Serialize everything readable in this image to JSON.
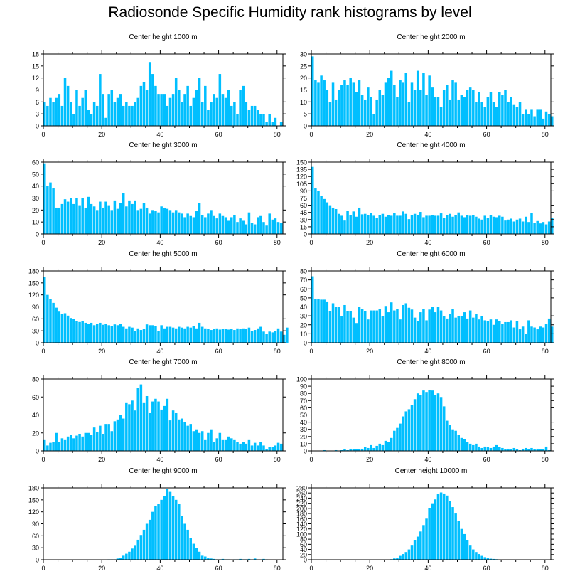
{
  "title": "Radiosonde Specific Humidity rank histograms by level",
  "colors": {
    "bar": "#00bfff",
    "axis": "#000000"
  },
  "chart_data": [
    {
      "type": "bar",
      "title": "Center height 1000 m",
      "xlabel": "",
      "ylabel": "",
      "xlim": [
        0,
        82
      ],
      "ylim": [
        0,
        18
      ],
      "yticks": [
        0,
        3,
        6,
        9,
        12,
        15,
        18
      ],
      "xticks": [
        0,
        20,
        40,
        60,
        80
      ],
      "values": [
        6,
        5,
        7,
        6,
        7,
        8,
        5,
        12,
        10,
        6,
        3,
        9,
        5,
        7,
        9,
        4,
        3,
        6,
        5,
        13,
        8,
        2,
        8,
        9,
        6,
        7,
        8,
        5,
        6,
        5,
        5,
        6,
        7,
        10,
        11,
        9,
        16,
        13,
        10,
        8,
        8,
        8,
        5,
        7,
        8,
        12,
        9,
        6,
        8,
        10,
        5,
        7,
        9,
        12,
        6,
        10,
        4,
        6,
        8,
        7,
        13,
        8,
        7,
        9,
        5,
        6,
        3,
        9,
        10,
        6,
        4,
        5,
        5,
        4,
        3,
        3,
        1,
        3,
        1,
        2,
        0,
        1
      ]
    },
    {
      "type": "bar",
      "title": "Center height 2000 m",
      "xlabel": "",
      "ylabel": "",
      "xlim": [
        0,
        82
      ],
      "ylim": [
        0,
        30
      ],
      "yticks": [
        0,
        5,
        10,
        15,
        20,
        25,
        30
      ],
      "xticks": [
        0,
        20,
        40,
        60,
        80
      ],
      "values": [
        29,
        19,
        18,
        21,
        19,
        15,
        10,
        18,
        11,
        15,
        17,
        19,
        17,
        20,
        18,
        14,
        19,
        13,
        11,
        16,
        12,
        5,
        11,
        15,
        13,
        18,
        20,
        23,
        17,
        12,
        19,
        18,
        22,
        10,
        18,
        15,
        23,
        15,
        22,
        13,
        21,
        16,
        12,
        12,
        8,
        15,
        17,
        11,
        19,
        18,
        11,
        13,
        12,
        15,
        16,
        15,
        10,
        14,
        10,
        8,
        12,
        14,
        10,
        8,
        14,
        13,
        15,
        10,
        12,
        9,
        8,
        10,
        5,
        7,
        5,
        7,
        4,
        7,
        7,
        3,
        6,
        5,
        4
      ]
    },
    {
      "type": "bar",
      "title": "Center height 3000 m",
      "xlabel": "",
      "ylabel": "",
      "xlim": [
        0,
        82
      ],
      "ylim": [
        0,
        60
      ],
      "yticks": [
        0,
        10,
        20,
        30,
        40,
        50,
        60
      ],
      "xticks": [
        0,
        20,
        40,
        60,
        80
      ],
      "values": [
        59,
        40,
        43,
        38,
        22,
        22,
        25,
        29,
        27,
        30,
        25,
        30,
        24,
        30,
        22,
        31,
        25,
        23,
        20,
        27,
        22,
        27,
        24,
        20,
        28,
        21,
        26,
        34,
        23,
        28,
        25,
        28,
        20,
        21,
        26,
        22,
        17,
        20,
        19,
        18,
        23,
        22,
        21,
        20,
        18,
        20,
        18,
        17,
        14,
        17,
        15,
        14,
        19,
        26,
        16,
        14,
        17,
        20,
        15,
        13,
        17,
        15,
        14,
        11,
        14,
        16,
        10,
        13,
        11,
        8,
        18,
        9,
        8,
        14,
        15,
        10,
        7,
        17,
        12,
        13,
        10,
        9
      ]
    },
    {
      "type": "bar",
      "title": "Center height 4000 m",
      "xlabel": "",
      "ylabel": "",
      "xlim": [
        0,
        82
      ],
      "ylim": [
        0,
        150
      ],
      "yticks": [
        0,
        15,
        30,
        45,
        60,
        75,
        90,
        105,
        120,
        135,
        150
      ],
      "xticks": [
        0,
        20,
        40,
        60,
        80
      ],
      "values": [
        140,
        95,
        90,
        80,
        73,
        66,
        60,
        55,
        52,
        42,
        38,
        28,
        48,
        40,
        47,
        36,
        55,
        41,
        42,
        40,
        44,
        38,
        34,
        40,
        42,
        36,
        40,
        38,
        44,
        38,
        38,
        47,
        42,
        31,
        40,
        42,
        40,
        46,
        35,
        38,
        38,
        40,
        38,
        38,
        43,
        33,
        40,
        42,
        36,
        40,
        45,
        38,
        35,
        40,
        38,
        40,
        36,
        32,
        30,
        38,
        34,
        40,
        36,
        35,
        38,
        36,
        28,
        30,
        32,
        26,
        30,
        32,
        26,
        36,
        25,
        44,
        23,
        27,
        22,
        25,
        20,
        26,
        33
      ]
    },
    {
      "type": "bar",
      "title": "Center height 5000 m",
      "xlabel": "",
      "ylabel": "",
      "xlim": [
        0,
        82
      ],
      "ylim": [
        0,
        180
      ],
      "yticks": [
        0,
        30,
        60,
        90,
        120,
        150,
        180
      ],
      "xticks": [
        0,
        20,
        40,
        60,
        80
      ],
      "values": [
        165,
        120,
        110,
        100,
        88,
        78,
        72,
        74,
        68,
        62,
        60,
        55,
        52,
        55,
        50,
        48,
        50,
        44,
        48,
        50,
        45,
        47,
        44,
        42,
        46,
        44,
        48,
        40,
        36,
        40,
        38,
        30,
        36,
        32,
        34,
        46,
        44,
        44,
        42,
        30,
        44,
        36,
        40,
        40,
        38,
        36,
        40,
        38,
        36,
        40,
        38,
        42,
        36,
        50,
        40,
        36,
        34,
        32,
        34,
        36,
        33,
        34,
        34,
        33,
        34,
        32,
        36,
        34,
        36,
        34,
        38,
        30,
        32,
        36,
        40,
        28,
        22,
        28,
        26,
        30,
        36,
        28,
        20,
        38
      ]
    },
    {
      "type": "bar",
      "title": "Center height 6000 m",
      "xlabel": "",
      "ylabel": "",
      "xlim": [
        0,
        82
      ],
      "ylim": [
        0,
        80
      ],
      "yticks": [
        0,
        10,
        20,
        30,
        40,
        50,
        60,
        70,
        80
      ],
      "xticks": [
        0,
        20,
        40,
        60,
        80
      ],
      "values": [
        74,
        49,
        49,
        48,
        48,
        46,
        35,
        44,
        40,
        40,
        30,
        42,
        35,
        35,
        28,
        22,
        40,
        38,
        35,
        26,
        36,
        36,
        36,
        38,
        30,
        41,
        34,
        45,
        36,
        38,
        26,
        42,
        44,
        39,
        37,
        28,
        24,
        34,
        38,
        25,
        37,
        40,
        34,
        40,
        36,
        30,
        27,
        32,
        38,
        28,
        30,
        30,
        34,
        27,
        36,
        28,
        32,
        26,
        30,
        25,
        24,
        26,
        20,
        26,
        24,
        21,
        23,
        23,
        25,
        17,
        24,
        15,
        18,
        10,
        25,
        18,
        17,
        15,
        18,
        17,
        21,
        27,
        18
      ]
    },
    {
      "type": "bar",
      "title": "Center height 7000 m",
      "xlabel": "",
      "ylabel": "",
      "xlim": [
        0,
        82
      ],
      "ylim": [
        0,
        80
      ],
      "yticks": [
        0,
        20,
        40,
        60,
        80
      ],
      "xticks": [
        0,
        20,
        40,
        60,
        80
      ],
      "values": [
        12,
        6,
        9,
        10,
        20,
        10,
        14,
        12,
        16,
        18,
        14,
        17,
        19,
        16,
        20,
        20,
        18,
        26,
        21,
        28,
        19,
        30,
        30,
        22,
        33,
        35,
        40,
        36,
        54,
        52,
        56,
        45,
        70,
        74,
        54,
        61,
        42,
        55,
        58,
        55,
        46,
        50,
        58,
        34,
        45,
        42,
        35,
        36,
        32,
        28,
        30,
        22,
        24,
        20,
        22,
        12,
        20,
        24,
        10,
        14,
        20,
        12,
        12,
        16,
        14,
        12,
        10,
        8,
        10,
        8,
        12,
        6,
        9,
        6,
        10,
        6,
        2,
        4,
        4,
        6,
        9,
        8
      ]
    },
    {
      "type": "bar",
      "title": "Center height 8000 m",
      "xlabel": "",
      "ylabel": "",
      "xlim": [
        0,
        82
      ],
      "ylim": [
        0,
        100
      ],
      "yticks": [
        0,
        10,
        20,
        30,
        40,
        50,
        60,
        70,
        80,
        90,
        100
      ],
      "xticks": [
        0,
        20,
        40,
        60,
        80
      ],
      "values": [
        0,
        0,
        0,
        0,
        1,
        0,
        0,
        0,
        1,
        0,
        1,
        2,
        1,
        3,
        2,
        2,
        2,
        3,
        5,
        4,
        8,
        4,
        7,
        10,
        8,
        14,
        12,
        18,
        28,
        32,
        38,
        48,
        55,
        58,
        64,
        72,
        80,
        78,
        84,
        82,
        85,
        84,
        78,
        80,
        75,
        62,
        42,
        36,
        30,
        28,
        22,
        18,
        16,
        12,
        10,
        8,
        10,
        6,
        4,
        6,
        5,
        4,
        6,
        8,
        5,
        4,
        2,
        3,
        2,
        4,
        2,
        1,
        3,
        4,
        3,
        4,
        2,
        3,
        2,
        2,
        6,
        1
      ]
    },
    {
      "type": "bar",
      "title": "Center height 9000 m",
      "xlabel": "",
      "ylabel": "",
      "xlim": [
        0,
        82
      ],
      "ylim": [
        0,
        180
      ],
      "yticks": [
        0,
        30,
        60,
        90,
        120,
        150,
        180
      ],
      "xticks": [
        0,
        20,
        40,
        60,
        80
      ],
      "values": [
        0,
        0,
        0,
        0,
        0,
        0,
        0,
        0,
        0,
        0,
        0,
        0,
        0,
        0,
        0,
        0,
        0,
        0,
        0,
        0,
        0,
        0,
        1,
        1,
        1,
        3,
        5,
        10,
        15,
        20,
        28,
        35,
        50,
        62,
        75,
        90,
        100,
        120,
        135,
        140,
        150,
        160,
        178,
        170,
        160,
        150,
        140,
        110,
        90,
        75,
        55,
        40,
        30,
        20,
        10,
        8,
        5,
        3,
        2,
        1,
        1,
        2,
        1,
        1,
        0,
        1,
        1,
        2,
        1,
        1,
        2,
        0,
        3,
        0,
        0,
        2,
        1,
        0,
        0,
        0,
        0,
        0
      ]
    },
    {
      "type": "bar",
      "title": "Center height 10000 m",
      "xlabel": "",
      "ylabel": "",
      "xlim": [
        0,
        82
      ],
      "ylim": [
        0,
        280
      ],
      "yticks": [
        0,
        20,
        40,
        60,
        80,
        100,
        120,
        140,
        160,
        180,
        200,
        220,
        240,
        260,
        280
      ],
      "xticks": [
        0,
        20,
        40,
        60,
        80
      ],
      "values": [
        0,
        0,
        0,
        0,
        0,
        0,
        0,
        0,
        0,
        0,
        0,
        0,
        0,
        0,
        0,
        0,
        0,
        0,
        0,
        0,
        0,
        0,
        0,
        0,
        0,
        0,
        1,
        2,
        5,
        8,
        15,
        22,
        30,
        40,
        55,
        75,
        90,
        110,
        135,
        160,
        200,
        220,
        235,
        255,
        262,
        258,
        250,
        230,
        205,
        180,
        150,
        120,
        100,
        75,
        55,
        40,
        30,
        22,
        15,
        10,
        6,
        4,
        3,
        2,
        1,
        1,
        0,
        0,
        0,
        0,
        0,
        0,
        0,
        0,
        0,
        0,
        0,
        0,
        0,
        0,
        0,
        0
      ]
    }
  ]
}
